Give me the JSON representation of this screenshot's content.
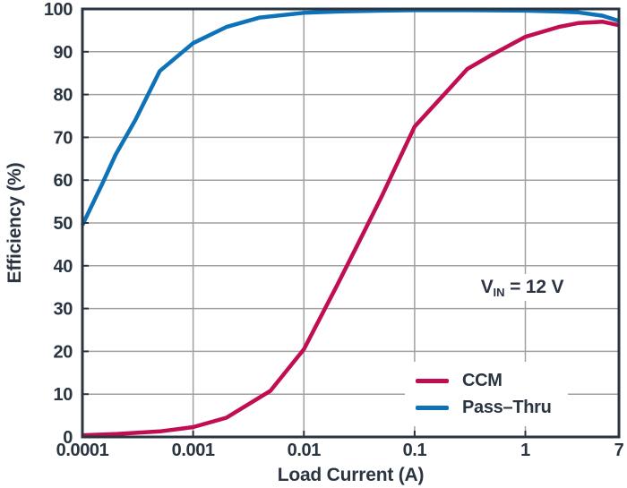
{
  "chart_data": {
    "type": "line",
    "title": "",
    "xlabel": "Load Current (A)",
    "ylabel": "Efficiency (%)",
    "x_scale": "log",
    "xlim": [
      0.0001,
      7
    ],
    "ylim": [
      0,
      100
    ],
    "grid": true,
    "x_gridlines": [
      0.001,
      0.01,
      0.1,
      1
    ],
    "y_gridlines": [
      10,
      20,
      30,
      40,
      50,
      60,
      70,
      80,
      90
    ],
    "x_ticks": [
      {
        "value": 0.0001,
        "label": "0.0001"
      },
      {
        "value": 0.001,
        "label": "0.001"
      },
      {
        "value": 0.01,
        "label": "0.01"
      },
      {
        "value": 0.1,
        "label": "0.1"
      },
      {
        "value": 1,
        "label": "1"
      },
      {
        "value": 7,
        "label": "7"
      }
    ],
    "y_ticks": [
      {
        "value": 0,
        "label": "0"
      },
      {
        "value": 10,
        "label": "10"
      },
      {
        "value": 20,
        "label": "20"
      },
      {
        "value": 30,
        "label": "30"
      },
      {
        "value": 40,
        "label": "40"
      },
      {
        "value": 50,
        "label": "50"
      },
      {
        "value": 60,
        "label": "60"
      },
      {
        "value": 70,
        "label": "70"
      },
      {
        "value": 80,
        "label": "80"
      },
      {
        "value": 90,
        "label": "90"
      },
      {
        "value": 100,
        "label": "100"
      }
    ],
    "series": [
      {
        "name": "CCM",
        "color": "#C10E52",
        "points": [
          [
            0.0001,
            0.4
          ],
          [
            0.0002,
            0.7
          ],
          [
            0.0005,
            1.3
          ],
          [
            0.001,
            2.3
          ],
          [
            0.002,
            4.5
          ],
          [
            0.005,
            10.8
          ],
          [
            0.01,
            20.5
          ],
          [
            0.02,
            35.5
          ],
          [
            0.03,
            44.5
          ],
          [
            0.05,
            56
          ],
          [
            0.07,
            64
          ],
          [
            0.1,
            72.5
          ],
          [
            0.2,
            81
          ],
          [
            0.3,
            86
          ],
          [
            0.5,
            89.3
          ],
          [
            1,
            93.5
          ],
          [
            2,
            95.8
          ],
          [
            3,
            96.7
          ],
          [
            5,
            97.0
          ],
          [
            7,
            96.2
          ]
        ]
      },
      {
        "name": "Pass–Thru",
        "color": "#0E72B8",
        "points": [
          [
            0.0001,
            49.5
          ],
          [
            0.00015,
            59
          ],
          [
            0.0002,
            66
          ],
          [
            0.0003,
            74
          ],
          [
            0.0005,
            85.5
          ],
          [
            0.001,
            92
          ],
          [
            0.002,
            95.8
          ],
          [
            0.004,
            98
          ],
          [
            0.01,
            99.1
          ],
          [
            0.02,
            99.4
          ],
          [
            0.05,
            99.6
          ],
          [
            0.1,
            99.7
          ],
          [
            0.3,
            99.7
          ],
          [
            1,
            99.6
          ],
          [
            2,
            99.4
          ],
          [
            3,
            99.2
          ],
          [
            5,
            98.4
          ],
          [
            7,
            97.2
          ]
        ]
      }
    ],
    "annotation": {
      "prefix": "V",
      "sub": "IN",
      "suffix": " = 12 V"
    },
    "legend_position": "bottom-right",
    "colors": {
      "axis": "#2B3542",
      "grid": "#A0A0A0",
      "background": "#FFFFFF"
    }
  }
}
